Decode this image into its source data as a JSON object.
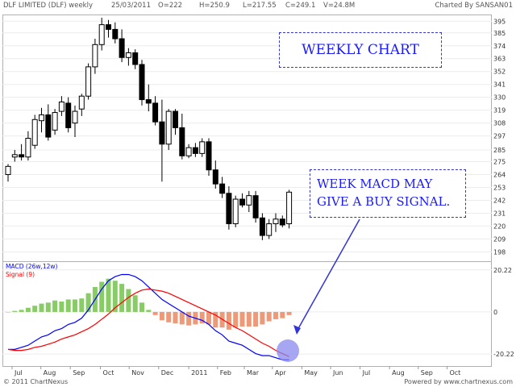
{
  "header": {
    "symbol": "DLF LIMITED (DLF) weekly",
    "date": "25/03/2011",
    "open": "O=222",
    "high": "H=250.9",
    "low": "L=217.55",
    "close": "C=249.1",
    "volume": "V=24.8M",
    "credit": "Charted By SANSAN01"
  },
  "footer": {
    "left": "© 2011 ChartNexus",
    "right": "Powered by www.chartnexus.com"
  },
  "annotations": {
    "title": "WEEKLY CHART",
    "note_line1": "WEEK MACD MAY",
    "note_line2": "GIVE A BUY SIGNAL."
  },
  "colors": {
    "up_candle": "#ffffff",
    "down_candle": "#000000",
    "macd_line": "#0000ff",
    "signal_line": "#ff0000",
    "hist_positive": "#88cc66",
    "hist_negative": "#ee9977",
    "annotation": "#3333cc",
    "highlight_circle": "#8888ee"
  },
  "chart_data": [
    {
      "type": "candlestick",
      "title": "DLF LIMITED (DLF) weekly",
      "y_ticks": [
        "395",
        "385",
        "374",
        "363",
        "352",
        "341",
        "330",
        "319",
        "308",
        "297",
        "285",
        "275",
        "264",
        "253",
        "242",
        "231",
        "220",
        "209",
        "198"
      ],
      "ylim": [
        190,
        400
      ],
      "x_labels": [
        "Jul",
        "Aug",
        "Sep",
        "Oct",
        "Nov",
        "Dec",
        "2011",
        "Feb",
        "Mar",
        "Apr",
        "May",
        "Jun",
        "Jul",
        "Aug",
        "Sep",
        "Oct"
      ],
      "x_label_weeks": [
        0.6,
        4.9,
        9.3,
        13.8,
        18.1,
        22.5,
        27,
        31.3,
        35.3,
        39.5,
        43.9,
        48.2,
        52.6,
        57,
        61.3,
        65.6
      ],
      "candles": [
        {
          "o": 264,
          "h": 273,
          "l": 258,
          "c": 271
        },
        {
          "o": 279,
          "h": 285,
          "l": 275,
          "c": 281
        },
        {
          "o": 281,
          "h": 290,
          "l": 276,
          "c": 279
        },
        {
          "o": 279,
          "h": 301,
          "l": 276,
          "c": 295
        },
        {
          "o": 289,
          "h": 315,
          "l": 286,
          "c": 311
        },
        {
          "o": 310,
          "h": 321,
          "l": 300,
          "c": 315
        },
        {
          "o": 315,
          "h": 324,
          "l": 293,
          "c": 296
        },
        {
          "o": 302,
          "h": 320,
          "l": 298,
          "c": 317
        },
        {
          "o": 318,
          "h": 331,
          "l": 314,
          "c": 326
        },
        {
          "o": 325,
          "h": 330,
          "l": 300,
          "c": 304
        },
        {
          "o": 308,
          "h": 323,
          "l": 296,
          "c": 318
        },
        {
          "o": 320,
          "h": 333,
          "l": 314,
          "c": 331
        },
        {
          "o": 331,
          "h": 359,
          "l": 328,
          "c": 356
        },
        {
          "o": 356,
          "h": 380,
          "l": 350,
          "c": 375
        },
        {
          "o": 375,
          "h": 398,
          "l": 370,
          "c": 392
        },
        {
          "o": 392,
          "h": 396,
          "l": 381,
          "c": 388
        },
        {
          "o": 388,
          "h": 394,
          "l": 376,
          "c": 380
        },
        {
          "o": 380,
          "h": 388,
          "l": 360,
          "c": 364
        },
        {
          "o": 364,
          "h": 372,
          "l": 357,
          "c": 368
        },
        {
          "o": 368,
          "h": 371,
          "l": 354,
          "c": 358
        },
        {
          "o": 358,
          "h": 362,
          "l": 323,
          "c": 328
        },
        {
          "o": 328,
          "h": 341,
          "l": 318,
          "c": 325
        },
        {
          "o": 325,
          "h": 331,
          "l": 306,
          "c": 309
        },
        {
          "o": 309,
          "h": 328,
          "l": 258,
          "c": 290
        },
        {
          "o": 290,
          "h": 320,
          "l": 285,
          "c": 318
        },
        {
          "o": 318,
          "h": 320,
          "l": 298,
          "c": 304
        },
        {
          "o": 304,
          "h": 316,
          "l": 277,
          "c": 280
        },
        {
          "o": 280,
          "h": 290,
          "l": 278,
          "c": 287
        },
        {
          "o": 287,
          "h": 291,
          "l": 279,
          "c": 282
        },
        {
          "o": 282,
          "h": 295,
          "l": 279,
          "c": 292
        },
        {
          "o": 292,
          "h": 295,
          "l": 263,
          "c": 268
        },
        {
          "o": 268,
          "h": 276,
          "l": 252,
          "c": 256
        },
        {
          "o": 256,
          "h": 262,
          "l": 244,
          "c": 248
        },
        {
          "o": 248,
          "h": 254,
          "l": 217,
          "c": 222
        },
        {
          "o": 222,
          "h": 246,
          "l": 219,
          "c": 243
        },
        {
          "o": 243,
          "h": 248,
          "l": 236,
          "c": 238
        },
        {
          "o": 238,
          "h": 250,
          "l": 232,
          "c": 246
        },
        {
          "o": 246,
          "h": 250,
          "l": 223,
          "c": 227
        },
        {
          "o": 227,
          "h": 231,
          "l": 208,
          "c": 212
        },
        {
          "o": 212,
          "h": 226,
          "l": 209,
          "c": 222
        },
        {
          "o": 222,
          "h": 231,
          "l": 215,
          "c": 226
        },
        {
          "o": 226,
          "h": 229,
          "l": 219,
          "c": 221
        },
        {
          "o": 222,
          "h": 251,
          "l": 218,
          "c": 249
        }
      ]
    },
    {
      "type": "line",
      "legend": [
        "MACD (26w,12w)",
        "Signal (9)"
      ],
      "y_ticks": [
        "20.22",
        "0",
        "-20.22"
      ],
      "ylim": [
        -26,
        24
      ],
      "series": [
        {
          "name": "MACD (26w,12w)",
          "values": [
            -18,
            -18,
            -17,
            -16,
            -14,
            -12,
            -11,
            -9,
            -8,
            -6,
            -5,
            -3,
            1,
            6,
            11,
            15,
            17,
            18,
            18,
            17,
            15,
            12,
            9,
            6,
            4,
            2,
            0,
            -2,
            -3,
            -4,
            -6,
            -9,
            -11,
            -14,
            -15,
            -16,
            -18,
            -20,
            -21,
            -21,
            -22,
            -23,
            -23
          ]
        },
        {
          "name": "Signal (9)",
          "values": [
            -18,
            -18.5,
            -18.5,
            -18,
            -17,
            -16.5,
            -15.5,
            -14.5,
            -13,
            -12,
            -11,
            -9.5,
            -8,
            -6,
            -3.5,
            -1,
            2,
            4.5,
            7,
            9,
            10.5,
            11,
            10.5,
            10,
            9,
            7.5,
            6,
            4.5,
            3,
            1.5,
            0,
            -1.5,
            -3.5,
            -5.5,
            -7.5,
            -9,
            -11,
            -13,
            -15,
            -16.5,
            -18.5,
            -20,
            -21.5
          ]
        }
      ],
      "histogram": [
        0,
        0.5,
        1,
        2,
        3,
        4,
        4.5,
        5.5,
        5,
        6,
        6,
        6.5,
        9,
        12,
        14.5,
        16,
        15,
        13.5,
        11,
        8,
        4.5,
        1,
        -1.5,
        -4,
        -5,
        -5.5,
        -6,
        -6.5,
        -6,
        -5.5,
        -6,
        -7.5,
        -7.5,
        -8.5,
        -7.5,
        -7,
        -7,
        -7,
        -6,
        -4.5,
        -3.5,
        -3,
        -1.5
      ]
    }
  ]
}
